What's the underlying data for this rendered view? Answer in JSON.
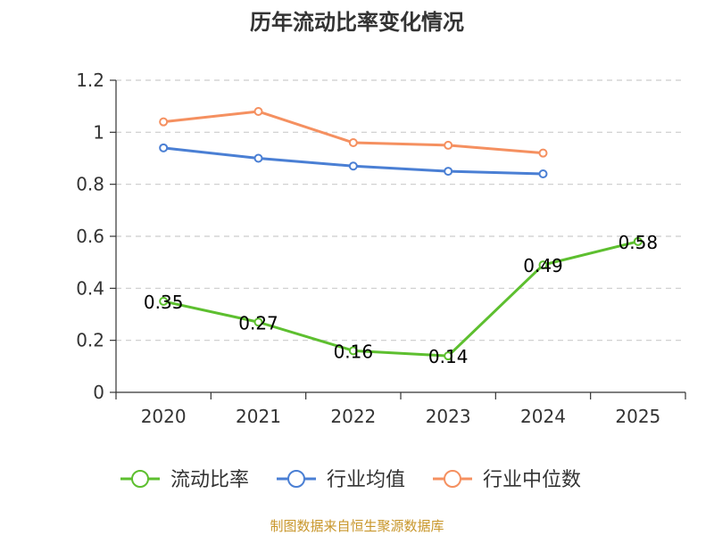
{
  "chart_data": {
    "type": "line",
    "title": "历年流动比率变化情况",
    "categories": [
      "2020",
      "2021",
      "2022",
      "2023",
      "2024",
      "2025"
    ],
    "y_ticks": [
      "0",
      "0.2",
      "0.4",
      "0.6",
      "0.8",
      "1",
      "1.2"
    ],
    "ylim": [
      0,
      1.2
    ],
    "grid": true,
    "legend_position": "bottom",
    "series": [
      {
        "name": "流动比率",
        "color": "#5dbf2f",
        "values": [
          0.35,
          0.27,
          0.16,
          0.14,
          0.49,
          0.58
        ],
        "labels": [
          "0.35",
          "0.27",
          "0.16",
          "0.14",
          "0.49",
          "0.58"
        ],
        "show_labels": true
      },
      {
        "name": "行业均值",
        "color": "#4a7fd4",
        "values": [
          0.94,
          0.9,
          0.87,
          0.85,
          0.84,
          null
        ],
        "show_labels": false
      },
      {
        "name": "行业中位数",
        "color": "#f59060",
        "values": [
          1.04,
          1.08,
          0.96,
          0.95,
          0.92,
          null
        ],
        "show_labels": false
      }
    ],
    "source": "制图数据来自恒生聚源数据库",
    "source_color": "#c8962a"
  }
}
